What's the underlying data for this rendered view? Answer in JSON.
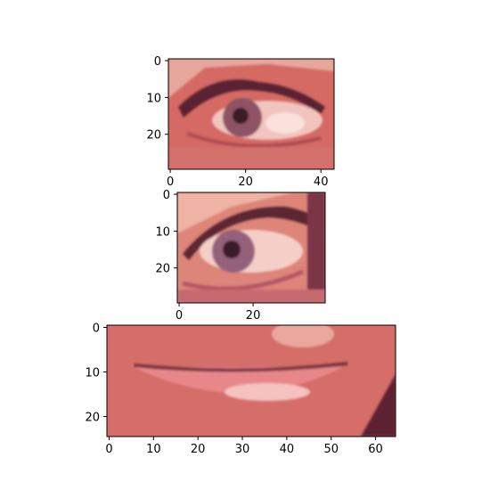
{
  "chart_data": [
    {
      "type": "image",
      "title": "",
      "subject": "eye with heavy lashes (close-up crop)",
      "shape": [
        30,
        44
      ],
      "xlim": [
        -0.5,
        43.5
      ],
      "ylim": [
        29.5,
        -0.5
      ],
      "xticks": [
        0,
        20,
        40
      ],
      "yticks": [
        0,
        10,
        20
      ],
      "palette": {
        "skin": "#d46a63",
        "skin_light": "#e7a79c",
        "lashes": "#5a2430",
        "iris": "#8e5365",
        "pupil": "#3b1a28",
        "sclera": "#f1c4bd",
        "highlight": "#fbe1dc"
      }
    },
    {
      "type": "image",
      "title": "",
      "subject": "eye close-up, lower lid and iris",
      "shape": [
        30,
        40
      ],
      "xlim": [
        -0.5,
        39.5
      ],
      "ylim": [
        29.5,
        -0.5
      ],
      "xticks": [
        0,
        20
      ],
      "yticks": [
        0,
        10,
        20
      ],
      "palette": {
        "skin": "#dd8579",
        "skin_light": "#efb3a5",
        "lashes": "#5b2532",
        "iris": "#94607a",
        "pupil": "#3a1b2c",
        "sclera": "#f4cfc7",
        "dark_corner": "#7c3446"
      }
    },
    {
      "type": "image",
      "title": "",
      "subject": "closed lips close-up",
      "shape": [
        25,
        65
      ],
      "xlim": [
        -0.5,
        64.5
      ],
      "ylim": [
        24.5,
        -0.5
      ],
      "xticks": [
        0,
        10,
        20,
        30,
        40,
        50,
        60
      ],
      "yticks": [
        0,
        10,
        20
      ],
      "palette": {
        "skin": "#d56d68",
        "skin_light": "#eaa79e",
        "lip_line": "#7a3440",
        "lower_lip": "#e8878a",
        "lip_highlight": "#f6c2c0",
        "hair": "#5d2430"
      }
    }
  ]
}
